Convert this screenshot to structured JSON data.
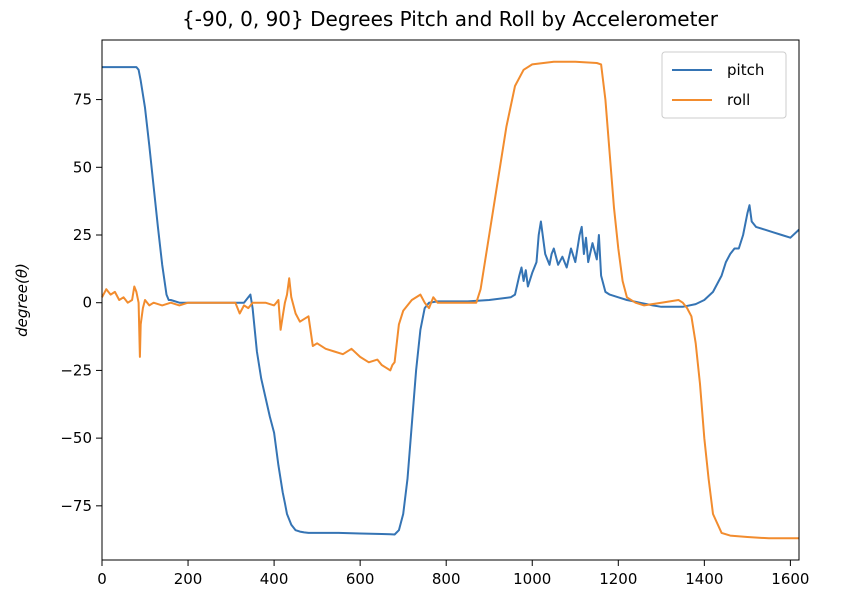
{
  "chart_data": {
    "type": "line",
    "title": "{-90, 0, 90} Degrees Pitch and Roll by Accelerometer",
    "xlabel": "",
    "ylabel": "degree(θ)",
    "xlim": [
      0,
      1620
    ],
    "ylim": [
      -95,
      97
    ],
    "xticks": [
      0,
      200,
      400,
      600,
      800,
      1000,
      1200,
      1400,
      1600
    ],
    "xtick_labels": [
      "0",
      "200",
      "400",
      "600",
      "800",
      "1000",
      "1200",
      "1400",
      "1600"
    ],
    "yticks": [
      75,
      50,
      25,
      0,
      -25,
      -50,
      -75
    ],
    "ytick_labels": [
      "75",
      "50",
      "25",
      "0",
      "−25",
      "−50",
      "−75"
    ],
    "grid": false,
    "legend_position": "top-right",
    "series": [
      {
        "name": "pitch",
        "color": "#3574b4",
        "x": [
          0,
          20,
          40,
          60,
          80,
          85,
          90,
          100,
          110,
          120,
          130,
          140,
          150,
          155,
          160,
          180,
          200,
          250,
          300,
          320,
          330,
          340,
          345,
          350,
          360,
          370,
          380,
          390,
          400,
          410,
          420,
          425,
          430,
          440,
          450,
          460,
          470,
          480,
          500,
          550,
          600,
          650,
          670,
          680,
          690,
          700,
          710,
          720,
          730,
          740,
          750,
          760,
          780,
          800,
          850,
          900,
          950,
          960,
          970,
          975,
          980,
          985,
          990,
          1000,
          1010,
          1015,
          1020,
          1030,
          1040,
          1045,
          1050,
          1060,
          1070,
          1080,
          1090,
          1100,
          1110,
          1115,
          1120,
          1125,
          1130,
          1140,
          1150,
          1155,
          1160,
          1170,
          1180,
          1200,
          1220,
          1250,
          1280,
          1300,
          1350,
          1380,
          1400,
          1420,
          1440,
          1450,
          1460,
          1470,
          1480,
          1490,
          1500,
          1505,
          1510,
          1520,
          1540,
          1560,
          1580,
          1600,
          1620
        ],
        "values": [
          87,
          87,
          87,
          87,
          87,
          86,
          82,
          72,
          58,
          43,
          28,
          14,
          3,
          1,
          1,
          0,
          0,
          0,
          0,
          0,
          0,
          2,
          3,
          -2,
          -18,
          -28,
          -35,
          -42,
          -48,
          -60,
          -70,
          -74,
          -78,
          -82,
          -84,
          -84.5,
          -84.8,
          -85,
          -85,
          -85,
          -85.2,
          -85.4,
          -85.5,
          -85.6,
          -84,
          -78,
          -65,
          -45,
          -25,
          -10,
          -2,
          0,
          0.5,
          0.5,
          0.5,
          1,
          2,
          3,
          10,
          13,
          8,
          12,
          6,
          11,
          15,
          25,
          30,
          18,
          14,
          18,
          20,
          14,
          17,
          13,
          20,
          15,
          25,
          28,
          18,
          24,
          15,
          22,
          16,
          25,
          10,
          4,
          3,
          2,
          1,
          0,
          -1,
          -1.5,
          -1.5,
          -0.5,
          1,
          4,
          10,
          15,
          18,
          20,
          20,
          25,
          33,
          36,
          30,
          28,
          27,
          26,
          25,
          24,
          27
        ]
      },
      {
        "name": "roll",
        "color": "#f28c2e",
        "x": [
          0,
          10,
          20,
          30,
          40,
          50,
          60,
          70,
          75,
          80,
          85,
          88,
          90,
          95,
          100,
          110,
          120,
          140,
          160,
          180,
          200,
          250,
          300,
          310,
          320,
          330,
          340,
          350,
          380,
          400,
          405,
          410,
          415,
          420,
          425,
          430,
          435,
          440,
          450,
          460,
          480,
          490,
          500,
          520,
          540,
          560,
          580,
          600,
          620,
          640,
          650,
          660,
          670,
          675,
          680,
          690,
          700,
          720,
          740,
          750,
          760,
          770,
          780,
          800,
          820,
          850,
          870,
          880,
          890,
          900,
          920,
          940,
          960,
          980,
          1000,
          1050,
          1100,
          1150,
          1160,
          1170,
          1180,
          1190,
          1200,
          1210,
          1220,
          1240,
          1260,
          1300,
          1340,
          1350,
          1360,
          1370,
          1380,
          1390,
          1400,
          1410,
          1420,
          1440,
          1460,
          1500,
          1550,
          1600,
          1620
        ],
        "values": [
          2,
          5,
          3,
          4,
          1,
          2,
          0,
          1,
          6,
          4,
          0,
          -20,
          -8,
          -2,
          1,
          -1,
          0,
          -1,
          0,
          -1,
          0,
          0,
          0,
          0,
          -4,
          -1,
          -2,
          0,
          0,
          -1,
          0,
          1,
          -10,
          -5,
          0,
          3,
          9,
          2,
          -4,
          -7,
          -5,
          -16,
          -15,
          -17,
          -18,
          -19,
          -17,
          -20,
          -22,
          -21,
          -23,
          -24,
          -25,
          -23,
          -22,
          -8,
          -3,
          1,
          3,
          0,
          -2,
          2,
          0,
          0,
          0,
          0,
          0,
          5,
          15,
          25,
          45,
          65,
          80,
          86,
          88,
          89,
          89,
          88.5,
          88,
          75,
          55,
          35,
          20,
          8,
          2,
          0,
          -1,
          0,
          1,
          0,
          -2,
          -5,
          -15,
          -30,
          -50,
          -65,
          -78,
          -85,
          -86,
          -86.5,
          -87,
          -87,
          -87
        ]
      }
    ]
  }
}
